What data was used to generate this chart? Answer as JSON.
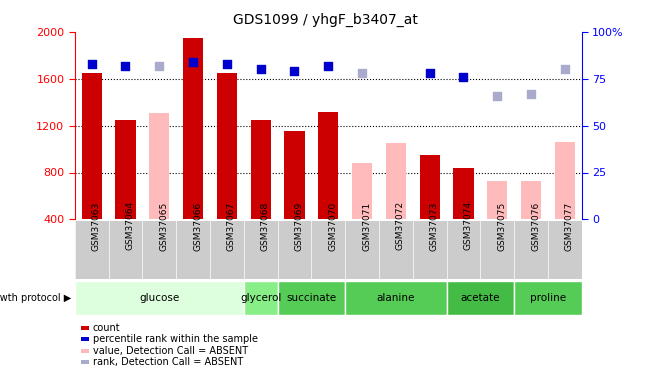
{
  "title": "GDS1099 / yhgF_b3407_at",
  "samples": [
    "GSM37063",
    "GSM37064",
    "GSM37065",
    "GSM37066",
    "GSM37067",
    "GSM37068",
    "GSM37069",
    "GSM37070",
    "GSM37071",
    "GSM37072",
    "GSM37073",
    "GSM37074",
    "GSM37075",
    "GSM37076",
    "GSM37077"
  ],
  "count_values": [
    1650,
    1250,
    null,
    1950,
    1650,
    1250,
    1150,
    1320,
    null,
    null,
    950,
    840,
    null,
    null,
    null
  ],
  "count_absent": [
    null,
    null,
    1310,
    null,
    null,
    null,
    null,
    null,
    880,
    1050,
    null,
    null,
    730,
    730,
    1060
  ],
  "rank_values": [
    83,
    82,
    null,
    84,
    83,
    80,
    79,
    82,
    null,
    null,
    78,
    76,
    null,
    null,
    null
  ],
  "rank_absent": [
    null,
    null,
    82,
    null,
    null,
    null,
    null,
    null,
    78,
    null,
    null,
    null,
    66,
    67,
    80
  ],
  "groups": [
    {
      "label": "glucose",
      "indices": [
        0,
        1,
        2,
        3,
        4
      ],
      "color": "#ddffdd"
    },
    {
      "label": "glycerol",
      "indices": [
        5
      ],
      "color": "#88ee88"
    },
    {
      "label": "succinate",
      "indices": [
        6,
        7
      ],
      "color": "#55cc55"
    },
    {
      "label": "alanine",
      "indices": [
        8,
        9,
        10
      ],
      "color": "#55cc55"
    },
    {
      "label": "acetate",
      "indices": [
        11,
        12
      ],
      "color": "#44bb44"
    },
    {
      "label": "proline",
      "indices": [
        13,
        14
      ],
      "color": "#55cc55"
    }
  ],
  "ylim_left": [
    400,
    2000
  ],
  "ylim_right": [
    0,
    100
  ],
  "yticks_left": [
    400,
    800,
    1200,
    1600,
    2000
  ],
  "yticks_right": [
    0,
    25,
    50,
    75,
    100
  ],
  "bar_color_present": "#cc0000",
  "bar_color_absent": "#ffbbbb",
  "dot_color_present": "#0000cc",
  "dot_color_absent": "#aaaacc",
  "bar_width": 0.6,
  "dot_size": 30,
  "background_color": "#ffffff",
  "legend_items": [
    {
      "label": "count",
      "color": "#cc0000"
    },
    {
      "label": "percentile rank within the sample",
      "color": "#0000cc"
    },
    {
      "label": "value, Detection Call = ABSENT",
      "color": "#ffbbbb"
    },
    {
      "label": "rank, Detection Call = ABSENT",
      "color": "#aaaacc"
    }
  ]
}
